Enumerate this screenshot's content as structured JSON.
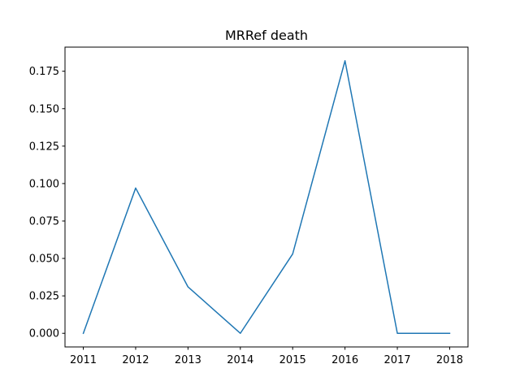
{
  "chart_data": {
    "type": "line",
    "title": "MRRef death",
    "xlabel": "",
    "ylabel": "",
    "x": [
      2011,
      2012,
      2013,
      2014,
      2015,
      2016,
      2017,
      2018
    ],
    "series": [
      {
        "values": [
          0.0,
          0.097,
          0.031,
          0.0,
          0.053,
          0.182,
          0.0,
          0.0
        ],
        "color": "#1f77b4"
      }
    ],
    "xticks": [
      "2011",
      "2012",
      "2013",
      "2014",
      "2015",
      "2016",
      "2017",
      "2018"
    ],
    "yticks": [
      "0.000",
      "0.025",
      "0.050",
      "0.075",
      "0.100",
      "0.125",
      "0.150",
      "0.175"
    ],
    "ytick_values": [
      0.0,
      0.025,
      0.05,
      0.075,
      0.1,
      0.125,
      0.15,
      0.175
    ],
    "xlim": [
      2010.65,
      2018.35
    ],
    "ylim": [
      -0.0091,
      0.1911
    ],
    "grid": false,
    "legend": "none"
  }
}
